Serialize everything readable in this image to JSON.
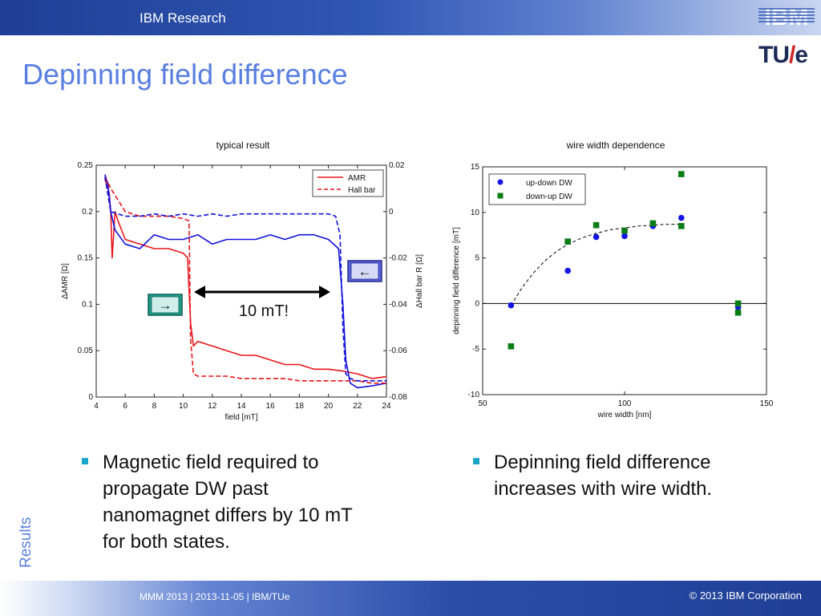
{
  "header": {
    "brand": "IBM Research",
    "ibm_logo": "IBM",
    "tue_logo_left": "TU",
    "tue_logo_slash": "/",
    "tue_logo_right": "e"
  },
  "slide": {
    "title": "Depinning field difference",
    "side_label": "Results"
  },
  "bullets": [
    {
      "lines": [
        "Magnetic field required to",
        "propagate DW past",
        "nanomagnet differs by 10 mT",
        "for both states."
      ]
    },
    {
      "lines": [
        "Depinning field difference",
        "increases with wire width."
      ]
    }
  ],
  "footer": {
    "left": "MMM 2013 | 2013-11-05 |  IBM/TUe",
    "right": "© 2013 IBM Corporation"
  },
  "colors": {
    "accent": "#5a7fe0",
    "amr": "#e8151b",
    "hall": "#1010dd",
    "series_blue": "#1414e6",
    "series_green": "#0b7d16",
    "arrow_box_right": "#1e9e8c",
    "arrow_box_left": "#5560dd"
  },
  "chart_data": [
    {
      "type": "line",
      "title": "typical result",
      "xlabel": "field [mT]",
      "ylabel": "ΔAMR [Ω]",
      "y2label": "ΔHall bar R [Ω]",
      "xlim": [
        4,
        24
      ],
      "ylim": [
        0,
        0.25
      ],
      "y2lim": [
        -0.08,
        0.02
      ],
      "xticks": [
        "4",
        "6",
        "8",
        "10",
        "12",
        "14",
        "16",
        "18",
        "20",
        "22",
        "24"
      ],
      "yticks": [
        "0",
        "0.05",
        "0.1",
        "0.15",
        "0.2",
        "0.25"
      ],
      "y2ticks": [
        "-0.08",
        "-0.06",
        "-0.04",
        "-0.02",
        "0",
        "0.02"
      ],
      "legend": {
        "position": "top-right",
        "entries": [
          "AMR",
          "Hall bar"
        ]
      },
      "annotation": "10 mT!",
      "arrow_right_glyph": "→",
      "arrow_left_glyph": "←",
      "series": [
        {
          "name": "AMR",
          "axis": "left",
          "style": "solid",
          "color": "#e8151b",
          "x": [
            4.6,
            4.7,
            4.9,
            5.0,
            5.1,
            5.3,
            5.5,
            6,
            7,
            8,
            9,
            10,
            10.3,
            10.5,
            10.7,
            11,
            12,
            13,
            14,
            15,
            16,
            17,
            18,
            19,
            20,
            21,
            22,
            23,
            24
          ],
          "y": [
            0.235,
            0.23,
            0.22,
            0.2,
            0.15,
            0.2,
            0.19,
            0.17,
            0.165,
            0.16,
            0.16,
            0.155,
            0.15,
            0.08,
            0.055,
            0.06,
            0.055,
            0.05,
            0.045,
            0.045,
            0.04,
            0.035,
            0.035,
            0.03,
            0.03,
            0.028,
            0.025,
            0.02,
            0.022
          ]
        },
        {
          "name": "AMR",
          "axis": "left",
          "style": "solid",
          "color": "#1010dd",
          "x": [
            4.6,
            4.8,
            5.0,
            5.3,
            6,
            7,
            8,
            9,
            10,
            11,
            12,
            13,
            14,
            15,
            16,
            17,
            18,
            19,
            20,
            20.7,
            21,
            21.2,
            21.5,
            22,
            23,
            24
          ],
          "y": [
            0.24,
            0.23,
            0.2,
            0.18,
            0.165,
            0.16,
            0.175,
            0.17,
            0.17,
            0.175,
            0.165,
            0.17,
            0.17,
            0.17,
            0.175,
            0.17,
            0.175,
            0.175,
            0.17,
            0.16,
            0.1,
            0.04,
            0.015,
            0.01,
            0.012,
            0.015
          ]
        },
        {
          "name": "Hall bar",
          "axis": "right",
          "style": "dashed",
          "color": "#e8151b",
          "x": [
            4.6,
            5,
            6,
            7,
            8,
            9,
            10,
            10.4,
            10.5,
            10.7,
            11,
            12,
            13,
            14,
            15,
            16,
            17,
            18,
            19,
            20,
            21,
            22,
            23,
            24
          ],
          "y": [
            0.015,
            0.01,
            0.0,
            -0.002,
            -0.002,
            -0.002,
            -0.003,
            -0.004,
            -0.055,
            -0.07,
            -0.071,
            -0.071,
            -0.071,
            -0.072,
            -0.072,
            -0.072,
            -0.072,
            -0.073,
            -0.073,
            -0.073,
            -0.073,
            -0.073,
            -0.074,
            -0.074
          ]
        },
        {
          "name": "Hall bar",
          "axis": "right",
          "style": "dashed",
          "color": "#1010dd",
          "x": [
            4.6,
            5,
            6,
            7,
            8,
            9,
            10,
            11,
            12,
            13,
            14,
            15,
            16,
            17,
            18,
            19,
            20,
            20.5,
            20.8,
            21,
            21.2,
            21.5,
            22,
            23,
            24
          ],
          "y": [
            0.015,
            0.0,
            -0.002,
            -0.002,
            -0.001,
            -0.002,
            -0.001,
            -0.002,
            -0.001,
            -0.002,
            -0.001,
            -0.001,
            -0.001,
            -0.001,
            -0.001,
            -0.001,
            -0.001,
            -0.002,
            -0.01,
            -0.05,
            -0.07,
            -0.072,
            -0.073,
            -0.073,
            -0.073
          ]
        }
      ]
    },
    {
      "type": "scatter",
      "title": "wire width dependence",
      "xlabel": "wire width [nm]",
      "ylabel": "depinning field difference [mT]",
      "xlim": [
        50,
        150
      ],
      "ylim": [
        -10,
        15
      ],
      "xticks": [
        "50",
        "100",
        "150"
      ],
      "yticks": [
        "-10",
        "-5",
        "0",
        "5",
        "10",
        "15"
      ],
      "legend": {
        "position": "top-left",
        "entries": [
          "up-down DW",
          "down-up DW"
        ]
      },
      "series": [
        {
          "name": "up-down DW",
          "marker": "circle",
          "color": "#1414e6",
          "x": [
            60,
            80,
            90,
            100,
            110,
            120,
            140
          ],
          "y": [
            -0.2,
            3.6,
            7.3,
            7.4,
            8.5,
            9.4,
            -0.4
          ]
        },
        {
          "name": "down-up DW",
          "marker": "square",
          "color": "#0b7d16",
          "x": [
            60,
            80,
            90,
            100,
            110,
            120,
            120,
            140,
            140
          ],
          "y": [
            -4.7,
            6.8,
            8.6,
            8.0,
            8.8,
            14.2,
            8.5,
            0.0,
            -1.0
          ]
        }
      ],
      "fit": {
        "style": "dashed",
        "x": [
          60,
          64,
          68,
          72,
          76,
          80,
          85,
          90,
          95,
          100,
          105,
          110,
          115,
          120
        ],
        "y": [
          -0.2,
          1.8,
          3.4,
          4.7,
          5.7,
          6.5,
          7.2,
          7.7,
          8.1,
          8.3,
          8.5,
          8.6,
          8.7,
          8.7
        ]
      },
      "reference_line_y": 0
    }
  ]
}
